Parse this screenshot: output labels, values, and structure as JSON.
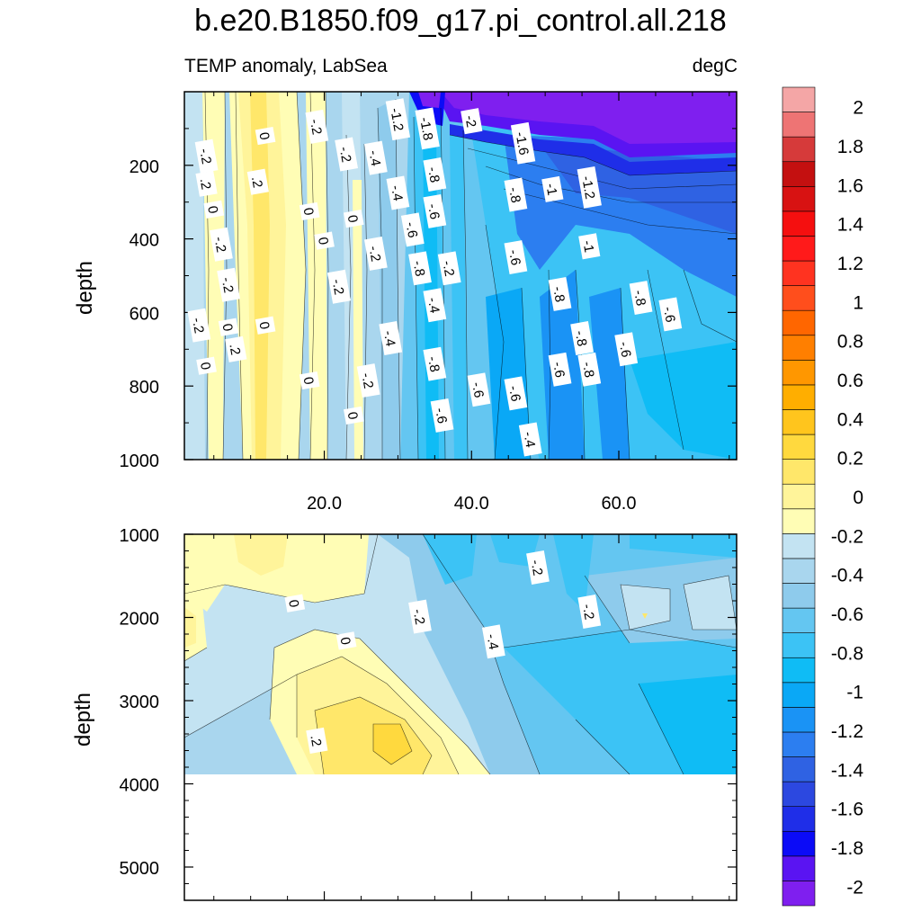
{
  "title": "b.e20.B1850.f09_g17.pi_control.all.218",
  "subtitle_left": "TEMP anomaly, LabSea",
  "subtitle_right": "degC",
  "colors": {
    "levels": [
      "#7f1fef",
      "#5a14f2",
      "#0b0bf7",
      "#1f2ee8",
      "#2c48e0",
      "#2f62e3",
      "#2c7ef0",
      "#1a93f5",
      "#0aa8f6",
      "#0fbcf5",
      "#3cc3f5",
      "#64c6f1",
      "#8ecbec",
      "#a9d6ee",
      "#c3e3f2",
      "#fffdb5",
      "#fff49a",
      "#ffe76a",
      "#ffd93e",
      "#ffc51d",
      "#ffae00",
      "#ff9700",
      "#ff7f00",
      "#ff6600",
      "#ff4e1c",
      "#ff3320",
      "#ff1a1a",
      "#f50f0f",
      "#d81212",
      "#c41010",
      "#d63a3a",
      "#ee7474",
      "#f4a6a6"
    ]
  },
  "chart_data": [
    {
      "type": "heatmap",
      "panel": "upper",
      "title": "",
      "xlabel": "",
      "ylabel": "depth",
      "x_range": [
        1,
        76
      ],
      "y_range": [
        1000,
        0
      ],
      "y_reversed": true,
      "x_ticks": [
        20.0,
        40.0,
        60.0
      ],
      "x_tick_labels": [
        "20.0",
        "40.0",
        "60.0"
      ],
      "y_ticks": [
        200,
        400,
        600,
        800,
        1000
      ],
      "y_tick_labels": [
        "200",
        "400",
        "600",
        "800",
        "1000"
      ],
      "contour_labels": [
        {
          "text": "-1.2",
          "x": 30,
          "y": 75
        },
        {
          "text": "-1.8",
          "x": 34,
          "y": 100
        },
        {
          "text": "-2",
          "x": 40,
          "y": 80
        },
        {
          "text": "-1.6",
          "x": 47,
          "y": 140
        },
        {
          "text": "-.2",
          "x": 19,
          "y": 95
        },
        {
          "text": "0",
          "x": 12,
          "y": 120
        },
        {
          "text": "-.2",
          "x": 4,
          "y": 175
        },
        {
          "text": "-.2",
          "x": 23,
          "y": 170
        },
        {
          "text": "-.4",
          "x": 27,
          "y": 180
        },
        {
          "text": "-.8",
          "x": 35,
          "y": 225
        },
        {
          "text": "-.8",
          "x": 46,
          "y": 280
        },
        {
          "text": "-1",
          "x": 51,
          "y": 265
        },
        {
          "text": "-1.2",
          "x": 56,
          "y": 260
        },
        {
          "text": ".2",
          "x": 4,
          "y": 250
        },
        {
          "text": ".2",
          "x": 11,
          "y": 245
        },
        {
          "text": "-.4",
          "x": 30,
          "y": 275
        },
        {
          "text": "-.6",
          "x": 35,
          "y": 325
        },
        {
          "text": "0",
          "x": 5,
          "y": 320
        },
        {
          "text": "0",
          "x": 18,
          "y": 325
        },
        {
          "text": "0",
          "x": 24,
          "y": 345
        },
        {
          "text": "-.6",
          "x": 32,
          "y": 375
        },
        {
          "text": "0",
          "x": 20,
          "y": 405
        },
        {
          "text": "-.2",
          "x": 6,
          "y": 415
        },
        {
          "text": "-.2",
          "x": 27,
          "y": 440
        },
        {
          "text": "-1",
          "x": 56,
          "y": 420
        },
        {
          "text": "-.6",
          "x": 46,
          "y": 450
        },
        {
          "text": "-.8",
          "x": 33,
          "y": 480
        },
        {
          "text": "-.2",
          "x": 37,
          "y": 480
        },
        {
          "text": "-.2",
          "x": 7,
          "y": 525
        },
        {
          "text": "-.2",
          "x": 22,
          "y": 530
        },
        {
          "text": "-.8",
          "x": 52,
          "y": 550
        },
        {
          "text": "-.8",
          "x": 63,
          "y": 560
        },
        {
          "text": "-.4",
          "x": 35,
          "y": 580
        },
        {
          "text": "-.6",
          "x": 67,
          "y": 605
        },
        {
          "text": "-.2",
          "x": 3,
          "y": 635
        },
        {
          "text": "0",
          "x": 7,
          "y": 640
        },
        {
          "text": "0",
          "x": 12,
          "y": 635
        },
        {
          "text": "-.4",
          "x": 29,
          "y": 670
        },
        {
          "text": "-.8",
          "x": 55,
          "y": 670
        },
        {
          "text": ".2",
          "x": 8,
          "y": 700
        },
        {
          "text": "-.6",
          "x": 61,
          "y": 700
        },
        {
          "text": "0",
          "x": 4,
          "y": 745
        },
        {
          "text": "-.8",
          "x": 35,
          "y": 740
        },
        {
          "text": "-.6",
          "x": 52,
          "y": 755
        },
        {
          "text": "-.8",
          "x": 56,
          "y": 755
        },
        {
          "text": "0",
          "x": 18,
          "y": 785
        },
        {
          "text": "-.2",
          "x": 26,
          "y": 785
        },
        {
          "text": "-.6",
          "x": 41,
          "y": 810
        },
        {
          "text": "-.6",
          "x": 46,
          "y": 820
        },
        {
          "text": "0",
          "x": 24,
          "y": 880
        },
        {
          "text": "-.6",
          "x": 36,
          "y": 880
        },
        {
          "text": "-.4",
          "x": 48,
          "y": 945
        }
      ]
    },
    {
      "type": "heatmap",
      "panel": "lower",
      "title": "",
      "xlabel": "",
      "ylabel": "depth",
      "x_range": [
        1,
        76
      ],
      "y_range": [
        5400,
        1000
      ],
      "y_reversed": true,
      "x_ticks": [
        20.0,
        40.0,
        60.0
      ],
      "y_ticks": [
        1000,
        2000,
        3000,
        4000,
        5000
      ],
      "y_tick_labels": [
        "1000",
        "2000",
        "3000",
        "4000",
        "5000"
      ],
      "bottom_depth_max": 3870,
      "contour_labels": [
        {
          "text": "0",
          "x": 16,
          "y": 1830
        },
        {
          "text": "-.2",
          "x": 33,
          "y": 1990
        },
        {
          "text": "-.2",
          "x": 49,
          "y": 1400
        },
        {
          "text": "-.2",
          "x": 56,
          "y": 1930
        },
        {
          "text": "0",
          "x": 23,
          "y": 2280
        },
        {
          "text": "-.4",
          "x": 43,
          "y": 2290
        },
        {
          "text": ".2",
          "x": 19,
          "y": 3480
        }
      ]
    },
    {
      "type": "colorbar",
      "min": -2.1,
      "max": 2.1,
      "step": 0.1,
      "labels": [
        "2",
        "1.8",
        "1.6",
        "1.4",
        "1.2",
        "1",
        "0.8",
        "0.6",
        "0.4",
        "0.2",
        "0",
        "-0.2",
        "-0.4",
        "-0.6",
        "-0.8",
        "-1",
        "-1.2",
        "-1.4",
        "-1.6",
        "-1.8",
        "-2"
      ],
      "label_values": [
        2,
        1.8,
        1.6,
        1.4,
        1.2,
        1,
        0.8,
        0.6,
        0.4,
        0.2,
        0,
        -0.2,
        -0.4,
        -0.6,
        -0.8,
        -1,
        -1.2,
        -1.4,
        -1.6,
        -1.8,
        -2
      ]
    }
  ]
}
